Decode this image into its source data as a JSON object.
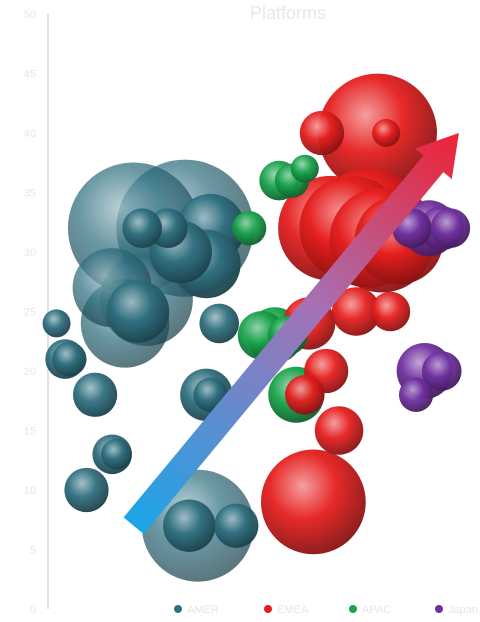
{
  "chart_data": {
    "type": "scatter",
    "variant": "bubble",
    "title": "Platforms",
    "xlabel": "",
    "ylabel": "",
    "xlim": [
      0,
      100
    ],
    "ylim": [
      0,
      50
    ],
    "y_ticks": [
      0,
      5,
      10,
      15,
      20,
      25,
      30,
      35,
      40,
      45,
      50
    ],
    "grid": false,
    "legend_position": "bottom-right",
    "series": [
      {
        "name": "AMER",
        "color": "#2f6f7f",
        "points": [
          {
            "x": 20,
            "y": 32,
            "size": 22
          },
          {
            "x": 32,
            "y": 32,
            "size": 24
          },
          {
            "x": 15,
            "y": 27,
            "size": 8
          },
          {
            "x": 18,
            "y": 24,
            "size": 10
          },
          {
            "x": 23,
            "y": 26,
            "size": 11
          },
          {
            "x": 21,
            "y": 25,
            "size": 5
          },
          {
            "x": 31,
            "y": 30,
            "size": 5
          },
          {
            "x": 38,
            "y": 32,
            "size": 6
          },
          {
            "x": 37,
            "y": 29,
            "size": 6
          },
          {
            "x": 28,
            "y": 32,
            "size": 2
          },
          {
            "x": 22,
            "y": 32,
            "size": 2
          },
          {
            "x": 4,
            "y": 21,
            "size": 2
          },
          {
            "x": 5,
            "y": 21,
            "size": 1.5
          },
          {
            "x": 2,
            "y": 24,
            "size": 1
          },
          {
            "x": 11,
            "y": 18,
            "size": 2.5
          },
          {
            "x": 9,
            "y": 10,
            "size": 2.5
          },
          {
            "x": 15,
            "y": 13,
            "size": 2
          },
          {
            "x": 16,
            "y": 13,
            "size": 1.2
          },
          {
            "x": 37,
            "y": 18,
            "size": 3.5
          },
          {
            "x": 38,
            "y": 18,
            "size": 1.5
          },
          {
            "x": 40,
            "y": 24,
            "size": 2
          },
          {
            "x": 44,
            "y": 7,
            "size": 2.5
          },
          {
            "x": 33,
            "y": 7,
            "size": 3.5
          },
          {
            "x": 35,
            "y": 7,
            "size": 16
          }
        ]
      },
      {
        "name": "EMEA",
        "color": "#e61e1e",
        "points": [
          {
            "x": 77,
            "y": 40,
            "size": 18
          },
          {
            "x": 64,
            "y": 40,
            "size": 2.5
          },
          {
            "x": 66,
            "y": 32,
            "size": 14
          },
          {
            "x": 71,
            "y": 32,
            "size": 14
          },
          {
            "x": 75,
            "y": 32,
            "size": 18
          },
          {
            "x": 78,
            "y": 31,
            "size": 14
          },
          {
            "x": 82,
            "y": 31,
            "size": 10
          },
          {
            "x": 61,
            "y": 24,
            "size": 3.5
          },
          {
            "x": 72,
            "y": 25,
            "size": 3
          },
          {
            "x": 80,
            "y": 25,
            "size": 2
          },
          {
            "x": 65,
            "y": 20,
            "size": 2.5
          },
          {
            "x": 60,
            "y": 18,
            "size": 2
          },
          {
            "x": 68,
            "y": 15,
            "size": 3
          },
          {
            "x": 62,
            "y": 9,
            "size": 14
          },
          {
            "x": 79,
            "y": 40,
            "size": 1
          }
        ]
      },
      {
        "name": "APAC",
        "color": "#18a24a",
        "points": [
          {
            "x": 54,
            "y": 36,
            "size": 2
          },
          {
            "x": 57,
            "y": 36,
            "size": 1.5
          },
          {
            "x": 60,
            "y": 37,
            "size": 1
          },
          {
            "x": 47,
            "y": 32,
            "size": 1.5
          },
          {
            "x": 50,
            "y": 23,
            "size": 3
          },
          {
            "x": 53,
            "y": 23,
            "size": 4
          },
          {
            "x": 56,
            "y": 23,
            "size": 2
          },
          {
            "x": 58,
            "y": 18,
            "size": 4
          }
        ]
      },
      {
        "name": "Japan",
        "color": "#7030a0",
        "points": [
          {
            "x": 85,
            "y": 32,
            "size": 2
          },
          {
            "x": 89,
            "y": 32,
            "size": 4
          },
          {
            "x": 92,
            "y": 32,
            "size": 2.5
          },
          {
            "x": 94,
            "y": 32,
            "size": 2
          },
          {
            "x": 88,
            "y": 20,
            "size": 4
          },
          {
            "x": 92,
            "y": 20,
            "size": 2
          },
          {
            "x": 86,
            "y": 18,
            "size": 1.5
          }
        ]
      }
    ],
    "annotations": [
      {
        "type": "arrow",
        "from": {
          "x": 20,
          "y": 7
        },
        "to": {
          "x": 96,
          "y": 40
        },
        "color_start": "#1aa6e8",
        "color_end": "#ee2233"
      }
    ]
  }
}
